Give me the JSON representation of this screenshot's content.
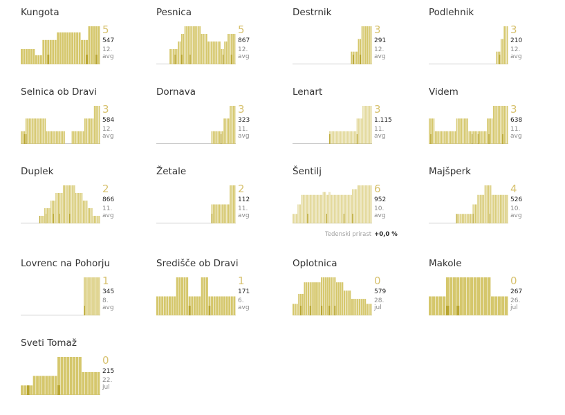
{
  "colors": {
    "bar": "#d5c76c",
    "bar_dark": "#b8a530",
    "number": "#d7c16e",
    "baseline": "#cccccc"
  },
  "footer": {
    "label": "Tedenski prirast",
    "value": "+0,0 %"
  },
  "chart_data": [
    {
      "type": "bar",
      "title": "Kungota",
      "big": "5",
      "count": "547",
      "date": "12. avg",
      "values": [
        1,
        1,
        1,
        1,
        1,
        1,
        0.6,
        0.6,
        0.6,
        1.6,
        1.6,
        1.6,
        1.6,
        1.6,
        1.6,
        2.1,
        2.1,
        2.1,
        2.1,
        2.1,
        2.1,
        2.1,
        2.1,
        2.1,
        2.1,
        1.6,
        1.6,
        1.6,
        2.5,
        2.5,
        2.5,
        2.5,
        2.5
      ],
      "marks": [
        11,
        27,
        31
      ]
    },
    {
      "type": "bar",
      "title": "Pesnica",
      "big": "5",
      "count": "867",
      "date": "12. avg",
      "values": [
        0,
        0,
        0,
        0,
        0,
        0,
        0,
        0,
        1,
        1,
        1,
        1,
        1,
        1.5,
        1.5,
        2,
        2,
        2.5,
        2.5,
        2.5,
        2.5,
        2.5,
        2.5,
        2.5,
        2.5,
        2.5,
        2.5,
        2,
        2,
        2,
        2,
        1.5,
        1.5,
        1.5,
        1.5,
        1.5,
        1.5,
        1.5,
        1.5,
        1,
        1,
        1.5,
        1.5,
        2,
        2,
        2,
        2,
        2
      ],
      "marks": [
        11,
        15,
        20,
        40,
        45
      ]
    },
    {
      "type": "bar",
      "title": "Destrnik",
      "big": "3",
      "count": "291",
      "date": "12. avg",
      "values": [
        0,
        0,
        0,
        0,
        0,
        0,
        0,
        0,
        0,
        0,
        0,
        0,
        0,
        0,
        0,
        0,
        0,
        0,
        0,
        0,
        0,
        0,
        0,
        0,
        0,
        0,
        0,
        0,
        0,
        0,
        0,
        0,
        0,
        1,
        1,
        1,
        1,
        2,
        2,
        3,
        3,
        3,
        3,
        3,
        3
      ],
      "marks": [
        34,
        38
      ]
    },
    {
      "type": "bar",
      "title": "Podlehnik",
      "big": "3",
      "count": "210",
      "date": "12. avg",
      "values": [
        0,
        0,
        0,
        0,
        0,
        0,
        0,
        0,
        0,
        0,
        0,
        0,
        0,
        0,
        0,
        0,
        0,
        0,
        0,
        0,
        0,
        0,
        0,
        0,
        0,
        0,
        0,
        0,
        0,
        0,
        0,
        0,
        0,
        0,
        0,
        0,
        0,
        0,
        0,
        0,
        0,
        0,
        0,
        0,
        1,
        1,
        1,
        2,
        2,
        3,
        3,
        3
      ],
      "marks": [
        46
      ]
    },
    {
      "type": "bar",
      "title": "Selnica ob Dravi",
      "big": "3",
      "count": "584",
      "date": "12. avg",
      "values": [
        1,
        1,
        1,
        2,
        2,
        2,
        2,
        2,
        2,
        2,
        2,
        2,
        2,
        2,
        2,
        2,
        1,
        1,
        1,
        1,
        1,
        1,
        1,
        1,
        1,
        1,
        1,
        1,
        0,
        0,
        0,
        0,
        1,
        1,
        1,
        1,
        1,
        1,
        1,
        1,
        2,
        2,
        2,
        2,
        2,
        2,
        3,
        3,
        3,
        3
      ],
      "marks": [
        2,
        3
      ]
    },
    {
      "type": "bar",
      "title": "Dornava",
      "big": "3",
      "count": "323",
      "date": "11. avg",
      "values": [
        0,
        0,
        0,
        0,
        0,
        0,
        0,
        0,
        0,
        0,
        0,
        0,
        0,
        0,
        0,
        0,
        0,
        0,
        0,
        0,
        0,
        0,
        0,
        0,
        0,
        0,
        0,
        0,
        0,
        0,
        0,
        0,
        0,
        0,
        0,
        0,
        1,
        1,
        1,
        1,
        1,
        1,
        1,
        1,
        2,
        2,
        2,
        2,
        3,
        3,
        3,
        3
      ],
      "marks": [
        42
      ]
    },
    {
      "type": "bar",
      "title": "Lenart",
      "big": "3",
      "count": "1.115",
      "date": "11. avg",
      "values": [
        0,
        0,
        0,
        0,
        0,
        0,
        0,
        0,
        0,
        0,
        0,
        0,
        0,
        0,
        0,
        0,
        0,
        0,
        0,
        0,
        0,
        0,
        0,
        0,
        0,
        0,
        0,
        0,
        0,
        0,
        0,
        0,
        0,
        0,
        0,
        0,
        0,
        0,
        0,
        0,
        0,
        0,
        0,
        1,
        1,
        1,
        1,
        1,
        1,
        1,
        1,
        1,
        1,
        1,
        1,
        1,
        1,
        1,
        1,
        1,
        1,
        1,
        1,
        1,
        1,
        1,
        1,
        1,
        1,
        1,
        1,
        1,
        1,
        1,
        1,
        2,
        2,
        2,
        2,
        2,
        2,
        2,
        3,
        3,
        3,
        3,
        3,
        3,
        3,
        3,
        3,
        3,
        3
      ],
      "marks": [
        43,
        93,
        75
      ]
    },
    {
      "type": "bar",
      "title": "Videm",
      "big": "3",
      "count": "638",
      "date": "11. avg",
      "values": [
        2,
        2,
        2,
        2,
        1,
        1,
        1,
        1,
        1,
        1,
        1,
        1,
        1,
        1,
        1,
        1,
        1,
        1,
        2,
        2,
        2,
        2,
        2,
        2,
        2,
        2,
        1,
        1,
        1,
        1,
        1,
        1,
        1,
        1,
        1,
        1,
        1,
        1,
        2,
        2,
        2,
        2,
        3,
        3,
        3,
        3,
        3,
        3,
        3,
        3,
        3,
        3
      ],
      "marks": [
        1,
        28,
        32,
        39,
        48
      ]
    },
    {
      "type": "bar",
      "title": "Duplek",
      "big": "2",
      "count": "866",
      "date": "11. avg",
      "values": [
        0,
        0,
        0,
        0,
        0,
        0,
        0,
        0,
        0,
        0,
        0,
        0,
        0,
        0,
        0,
        1,
        1,
        1,
        1,
        2,
        2,
        2,
        2,
        2,
        3,
        3,
        3,
        3,
        4,
        4,
        4,
        4,
        4,
        4,
        5,
        5,
        5,
        5,
        5,
        5,
        5,
        5,
        5,
        5,
        4,
        4,
        4,
        4,
        4,
        4,
        3,
        3,
        3,
        3,
        2,
        2,
        2,
        2,
        1,
        1,
        1,
        1,
        1,
        1
      ],
      "marks": [
        15,
        20,
        26,
        31,
        39
      ]
    },
    {
      "type": "bar",
      "title": "Žetale",
      "big": "2",
      "count": "112",
      "date": "11. avg",
      "values": [
        0,
        0,
        0,
        0,
        0,
        0,
        0,
        0,
        0,
        0,
        0,
        0,
        0,
        0,
        0,
        0,
        0,
        0,
        0,
        0,
        0,
        0,
        0,
        0,
        0,
        0,
        0,
        0,
        0,
        0,
        0,
        0,
        0,
        0,
        0,
        0,
        1,
        1,
        1,
        1,
        1,
        1,
        1,
        1,
        1,
        1,
        1,
        1,
        2,
        2,
        2,
        2
      ],
      "marks": [
        36
      ]
    },
    {
      "type": "bar",
      "title": "Šentilj",
      "big": "6",
      "count": "952",
      "date": "10. avg",
      "values": [
        1,
        1,
        1,
        1,
        1,
        1,
        2,
        2,
        2,
        2,
        3,
        3,
        3,
        3,
        3,
        3,
        3,
        3,
        3,
        3,
        3,
        3,
        3,
        3,
        3,
        3,
        3,
        3,
        3,
        3,
        3,
        3,
        3,
        3,
        3,
        3.3,
        3.3,
        3.3,
        3.3,
        3,
        3,
        3,
        3.3,
        3.3,
        3,
        3,
        3,
        3,
        3,
        3,
        3,
        3,
        3,
        3,
        3,
        3,
        3,
        3,
        3,
        3,
        3,
        3,
        3,
        3,
        3,
        3,
        3,
        3,
        3,
        3.6,
        3.6,
        3.6,
        3.6,
        3.6,
        3.6,
        4,
        4,
        4,
        4,
        4,
        4,
        4,
        4,
        4,
        4,
        4,
        4,
        4,
        4,
        4,
        4,
        4
      ],
      "marks": [
        17,
        39,
        59,
        69
      ]
    },
    {
      "type": "bar",
      "title": "Majšperk",
      "big": "4",
      "count": "526",
      "date": "10. avg",
      "values": [
        0,
        0,
        0,
        0,
        0,
        0,
        0,
        0,
        0,
        0,
        0,
        0,
        0,
        0,
        0,
        0,
        0,
        0,
        0,
        0,
        0,
        0,
        0,
        1,
        1,
        1,
        1,
        1,
        1,
        1,
        1,
        1,
        1,
        1,
        1,
        1,
        1,
        2,
        2,
        2,
        2,
        3,
        3,
        3,
        3,
        3,
        3,
        4,
        4,
        4,
        4,
        4,
        4,
        3,
        3,
        3,
        3,
        3,
        3,
        3,
        3,
        3,
        3,
        3,
        3,
        3,
        3
      ],
      "marks": [
        23,
        37,
        51
      ]
    },
    {
      "type": "bar",
      "title": "Lovrenc na Pohorju",
      "big": "1",
      "count": "345",
      "date": "8. avg",
      "values": [
        0,
        0,
        0,
        0,
        0,
        0,
        0,
        0,
        0,
        0,
        0,
        0,
        0,
        0,
        0,
        0,
        0,
        0,
        0,
        0,
        0,
        0,
        0,
        0,
        0,
        0,
        0,
        0,
        0,
        0,
        0,
        0,
        0,
        0,
        0,
        0,
        0,
        0,
        0,
        0,
        0,
        0,
        0,
        0,
        0,
        0,
        0,
        0,
        0,
        0,
        0,
        0,
        0,
        0,
        0,
        0,
        0,
        0,
        0,
        0,
        0,
        0,
        0,
        0,
        0,
        0,
        0,
        0,
        0,
        0,
        0,
        0,
        0,
        0,
        0,
        0,
        0,
        0,
        0,
        0,
        0,
        0,
        0,
        0,
        0,
        0,
        0,
        0,
        0,
        0,
        0,
        0,
        0,
        0,
        0,
        0,
        0,
        0,
        0,
        0,
        0,
        0,
        0,
        0,
        0,
        0,
        1,
        1,
        1,
        1,
        1,
        1,
        1,
        1,
        1,
        1,
        1,
        1,
        1,
        1,
        1,
        1,
        1,
        1,
        1,
        1,
        1,
        1,
        1,
        1,
        1,
        1,
        1,
        1
      ],
      "marks": [
        107
      ]
    },
    {
      "type": "bar",
      "title": "Središče ob Dravi",
      "big": "1",
      "count": "171",
      "date": "6. avg",
      "values": [
        1,
        1,
        1,
        1,
        1,
        1,
        1,
        1,
        2,
        2,
        2,
        2,
        2,
        1,
        1,
        1,
        1,
        1,
        2,
        2,
        2,
        1,
        1,
        1,
        1,
        1,
        1,
        1,
        1,
        1,
        1,
        1
      ],
      "marks": [
        13,
        21
      ]
    },
    {
      "type": "bar",
      "title": "Oplotnica",
      "big": "0",
      "count": "579",
      "date": "28. jul",
      "values": [
        0.7,
        0.7,
        0.7,
        1.3,
        1.3,
        1.3,
        2,
        2,
        2,
        2,
        2,
        2,
        2,
        2,
        2,
        2.3,
        2.3,
        2.3,
        2.3,
        2.3,
        2.3,
        2.3,
        2.3,
        2,
        2,
        2,
        2,
        1.5,
        1.5,
        1.5,
        1.5,
        1,
        1,
        1,
        1,
        1,
        1,
        1,
        1,
        0.7,
        0.7,
        0.7
      ],
      "marks": [
        4,
        9,
        15,
        19,
        22
      ]
    },
    {
      "type": "bar",
      "title": "Makole",
      "big": "0",
      "count": "267",
      "date": "26. jul",
      "values": [
        1,
        1,
        1,
        1,
        1,
        2,
        2,
        2,
        2,
        2,
        2,
        2,
        2,
        2,
        2,
        2,
        2,
        2,
        1,
        1,
        1,
        1,
        1
      ],
      "marks": [
        5,
        8
      ]
    },
    {
      "type": "bar",
      "title": "Sveti Tomaž",
      "big": "0",
      "count": "215",
      "date": "22. jul",
      "values": [
        0.5,
        0.5,
        0.5,
        0.5,
        1,
        1,
        1,
        1,
        1,
        1,
        1,
        1,
        2,
        2,
        2,
        2,
        2,
        2,
        2,
        2,
        1.2,
        1.2,
        1.2,
        1.2,
        1.2,
        1.2
      ],
      "marks": [
        2,
        12
      ]
    }
  ]
}
